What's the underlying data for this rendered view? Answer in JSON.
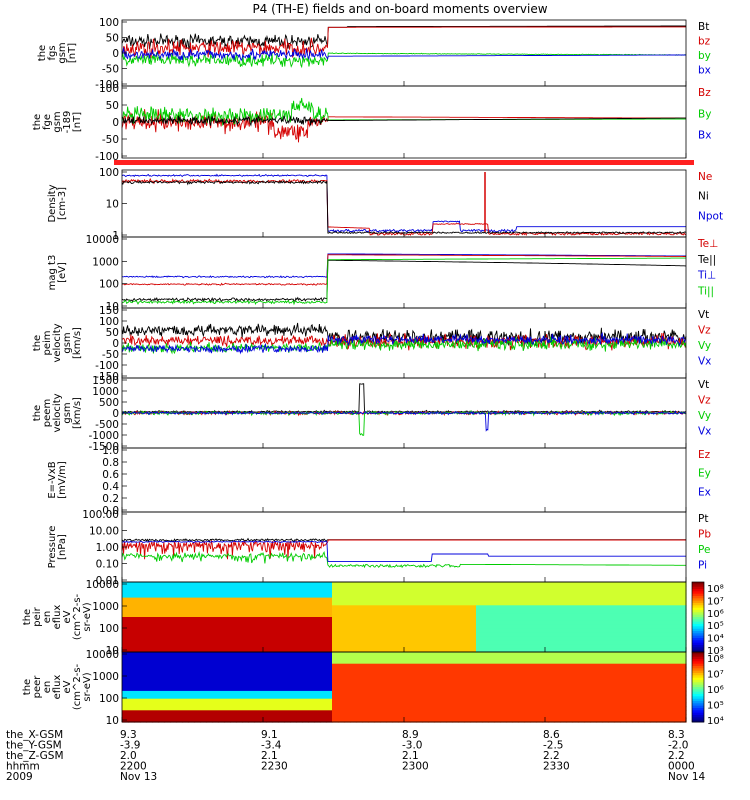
{
  "title": "P4 (TH-E) fields and on-board moments overview",
  "panels": [
    {
      "id": "fgs",
      "ylabel": [
        "the",
        "fgs",
        "gsm",
        "[nT]"
      ],
      "ticks": [
        "100",
        "50",
        "0",
        "-50",
        "-100"
      ],
      "legend": [
        {
          "text": "Bt",
          "color": "#000000"
        },
        {
          "text": "bz",
          "color": "#d40000"
        },
        {
          "text": "by",
          "color": "#00cc00"
        },
        {
          "text": "bx",
          "color": "#0000dd"
        }
      ]
    },
    {
      "id": "fge",
      "ylabel": [
        "the",
        "fge",
        "gsm",
        "-189",
        "[nT]"
      ],
      "ticks": [
        "100",
        "50",
        "0",
        "-50",
        "-100"
      ],
      "legend": [
        {
          "text": "Bz",
          "color": "#d40000"
        },
        {
          "text": "By",
          "color": "#00cc00"
        },
        {
          "text": "Bx",
          "color": "#0000dd"
        }
      ]
    },
    {
      "id": "density",
      "ylabel": [
        "Density",
        "[cm-3]"
      ],
      "ticks": [
        "100",
        "10",
        "1"
      ],
      "legend": [
        {
          "text": "Ne",
          "color": "#d40000"
        },
        {
          "text": "Ni",
          "color": "#000000"
        },
        {
          "text": "Npot",
          "color": "#0000dd"
        }
      ]
    },
    {
      "id": "temp",
      "ylabel": [
        "mag t3",
        "[eV]"
      ],
      "ticks": [
        "10000",
        "1000",
        "100",
        "10"
      ],
      "legend": [
        {
          "text": "Te⊥",
          "color": "#d40000"
        },
        {
          "text": "Te||",
          "color": "#000000"
        },
        {
          "text": "Ti⊥",
          "color": "#0000dd"
        },
        {
          "text": "Ti||",
          "color": "#00cc00"
        }
      ]
    },
    {
      "id": "peim",
      "ylabel": [
        "the",
        "peim",
        "velocity",
        "gsm",
        "[km/s]"
      ],
      "ticks": [
        "150",
        "100",
        "50",
        "0",
        "-50",
        "-100",
        "-150"
      ],
      "legend": [
        {
          "text": "Vt",
          "color": "#000000"
        },
        {
          "text": "Vz",
          "color": "#d40000"
        },
        {
          "text": "Vy",
          "color": "#00cc00"
        },
        {
          "text": "Vx",
          "color": "#0000dd"
        }
      ]
    },
    {
      "id": "peem",
      "ylabel": [
        "the",
        "peem",
        "velocity",
        "gsm",
        "[km/s]"
      ],
      "ticks": [
        "1500",
        "1000",
        "500",
        "0",
        "-500",
        "-1000",
        "-1500"
      ],
      "legend": [
        {
          "text": "Vt",
          "color": "#000000"
        },
        {
          "text": "Vz",
          "color": "#d40000"
        },
        {
          "text": "Vy",
          "color": "#00cc00"
        },
        {
          "text": "Vx",
          "color": "#0000dd"
        }
      ]
    },
    {
      "id": "efield",
      "ylabel": [
        "E=-VxB",
        "[mV/m]"
      ],
      "ticks": [
        "1.0",
        "0.8",
        "0.6",
        "0.4",
        "0.2",
        "0.0"
      ],
      "legend": [
        {
          "text": "Ez",
          "color": "#d40000"
        },
        {
          "text": "Ey",
          "color": "#00cc00"
        },
        {
          "text": "Ex",
          "color": "#0000dd"
        }
      ]
    },
    {
      "id": "pressure",
      "ylabel": [
        "Pressure",
        "[nPa]"
      ],
      "ticks": [
        "100.00",
        "10.00",
        "1.00",
        "0.10",
        "0.01"
      ],
      "legend": [
        {
          "text": "Pt",
          "color": "#000000"
        },
        {
          "text": "Pb",
          "color": "#d40000"
        },
        {
          "text": "Pe",
          "color": "#00cc00"
        },
        {
          "text": "Pi",
          "color": "#0000dd"
        }
      ]
    },
    {
      "id": "peir",
      "ylabel": [
        "the",
        "peir",
        "en",
        "eflux",
        "eV",
        "(cm^2-s-",
        "sr-eV)"
      ],
      "ticks": [
        "10000",
        "1000",
        "100",
        "10"
      ],
      "colorbar": [
        "10⁸",
        "10⁷",
        "10⁶",
        "10⁵",
        "10⁴",
        "10³"
      ]
    },
    {
      "id": "peer",
      "ylabel": [
        "the",
        "peer",
        "en",
        "eflux",
        "eV",
        "(cm^2-s-",
        "sr-eV)"
      ],
      "ticks": [
        "10000",
        "1000",
        "100",
        "10"
      ],
      "colorbar": [
        "10⁸",
        "10⁷",
        "10⁶",
        "10⁵",
        "10⁴"
      ]
    }
  ],
  "footer": {
    "labels": [
      "the_X-GSM",
      "the_Y-GSM",
      "the_Z-GSM",
      "hhmm",
      "2009"
    ],
    "columns": [
      {
        "values": [
          "9.3",
          "-3.9",
          "2.0",
          "2200",
          "Nov 13"
        ]
      },
      {
        "values": [
          "9.1",
          "-3.4",
          "2.1",
          "2230",
          ""
        ]
      },
      {
        "values": [
          "8.9",
          "-3.0",
          "2.1",
          "2300",
          ""
        ]
      },
      {
        "values": [
          "8.6",
          "-2.5",
          "2.2",
          "2330",
          ""
        ]
      },
      {
        "values": [
          "8.3",
          "-2.0",
          "2.2",
          "0000",
          "Nov 14"
        ]
      }
    ]
  },
  "colors": {
    "black": "#000000",
    "red": "#d40000",
    "green": "#00cc00",
    "blue": "#0000dd",
    "flag": "#ff2020"
  }
}
